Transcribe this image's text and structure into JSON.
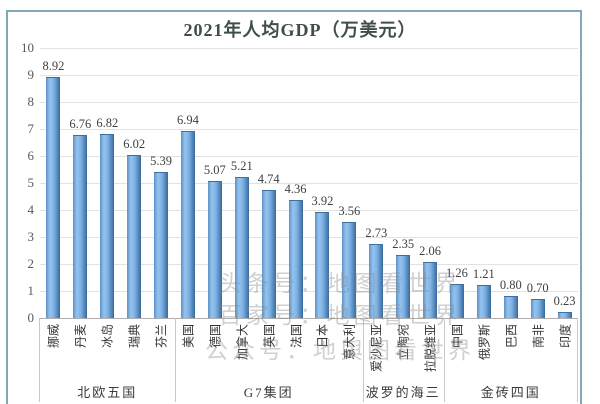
{
  "title": "2021年人均GDP（万美元）",
  "watermarks": {
    "line1": "头条号：地图看世界",
    "line2": "百家号：地图看世界",
    "line3": "公众号：地舆图看世界"
  },
  "chart_data": {
    "type": "bar",
    "title": "2021年人均GDP（万美元）",
    "xlabel": "",
    "ylabel": "",
    "ylim": [
      0,
      10
    ],
    "ytick_interval": 1,
    "grid": true,
    "legend": "none",
    "bar_colors": {
      "edge_dark": "#38689a",
      "mid_light": "#93c4f0",
      "base": "#5e92c4"
    },
    "frame_color": "#7fa9b6",
    "groups": [
      {
        "label": "北欧五国",
        "categories": [
          "挪威",
          "丹麦",
          "冰岛",
          "瑞典",
          "芬兰"
        ],
        "values": [
          8.92,
          6.76,
          6.82,
          6.02,
          5.39
        ]
      },
      {
        "label": "G7集团",
        "categories": [
          "美国",
          "德国",
          "加拿大",
          "英国",
          "法国",
          "日本",
          "意大利"
        ],
        "values": [
          6.94,
          5.07,
          5.21,
          4.74,
          4.36,
          3.92,
          3.56
        ]
      },
      {
        "label": "波罗的海三",
        "categories": [
          "爱沙尼亚",
          "立陶宛",
          "拉脱维亚"
        ],
        "values": [
          2.73,
          2.35,
          2.06
        ]
      },
      {
        "label": "金砖四国",
        "categories": [
          "中国",
          "俄罗斯",
          "巴西",
          "南非",
          "印度"
        ],
        "values": [
          1.26,
          1.21,
          0.8,
          0.7,
          0.23
        ]
      }
    ]
  }
}
